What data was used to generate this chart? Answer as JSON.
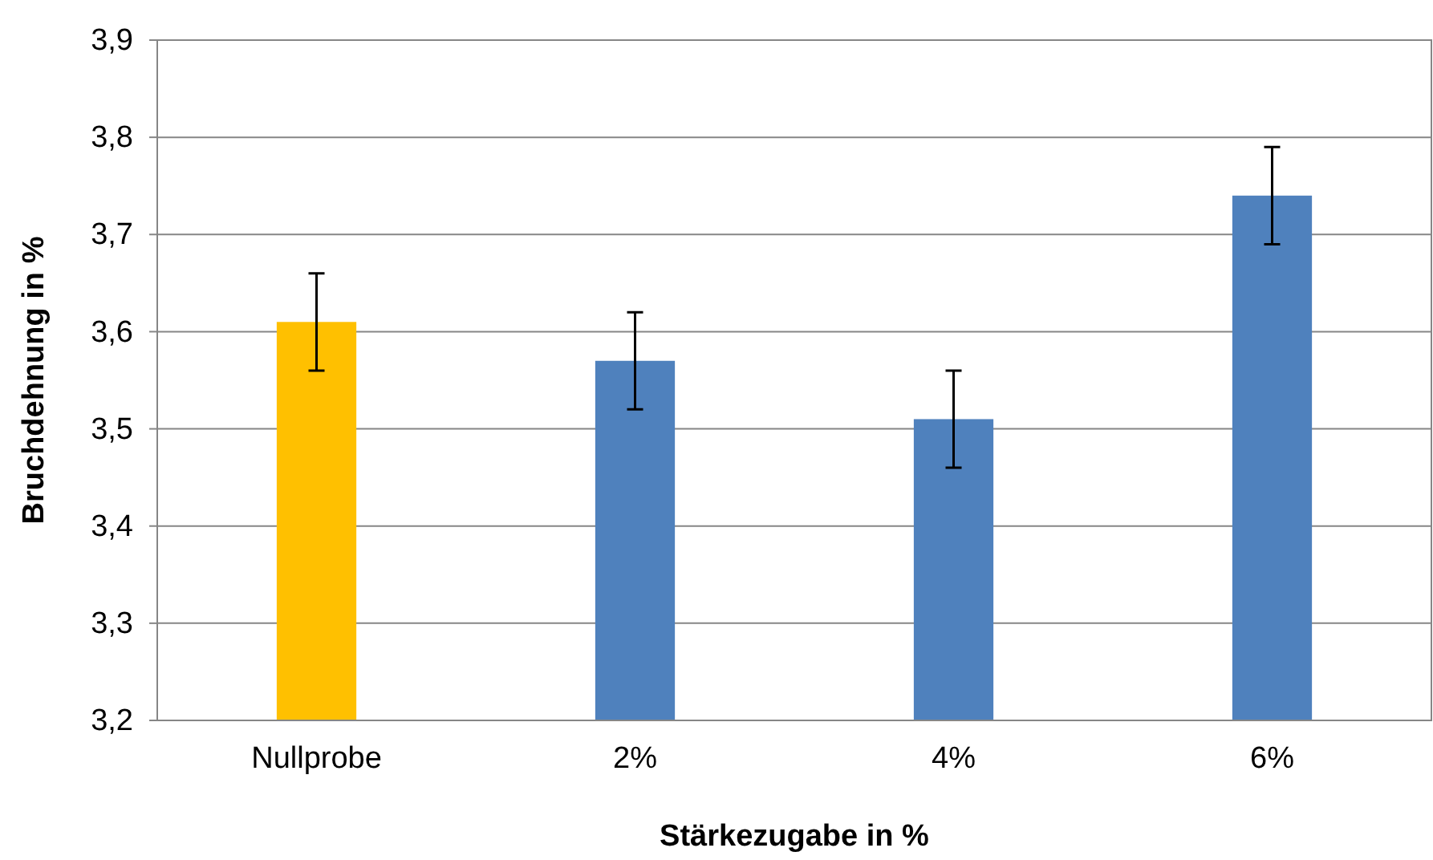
{
  "chart_data": {
    "type": "bar",
    "xlabel": "Stärkezugabe in %",
    "ylabel": "Bruchdehnung in %",
    "categories": [
      "Nullprobe",
      "2%",
      "4%",
      "6%"
    ],
    "values": [
      3.61,
      3.57,
      3.51,
      3.74
    ],
    "colors": [
      "#ffc000",
      "#4f81bd",
      "#4f81bd",
      "#4f81bd"
    ],
    "errors": [
      0.05,
      0.05,
      0.05,
      0.05
    ],
    "ylim": [
      3.2,
      3.9
    ],
    "yticks": [
      {
        "value": 3.2,
        "label": "3,2"
      },
      {
        "value": 3.3,
        "label": "3,3"
      },
      {
        "value": 3.4,
        "label": "3,4"
      },
      {
        "value": 3.5,
        "label": "3,5"
      },
      {
        "value": 3.6,
        "label": "3,6"
      },
      {
        "value": 3.7,
        "label": "3,7"
      },
      {
        "value": 3.8,
        "label": "3,8"
      },
      {
        "value": 3.9,
        "label": "3,9"
      }
    ],
    "grid": "y"
  }
}
